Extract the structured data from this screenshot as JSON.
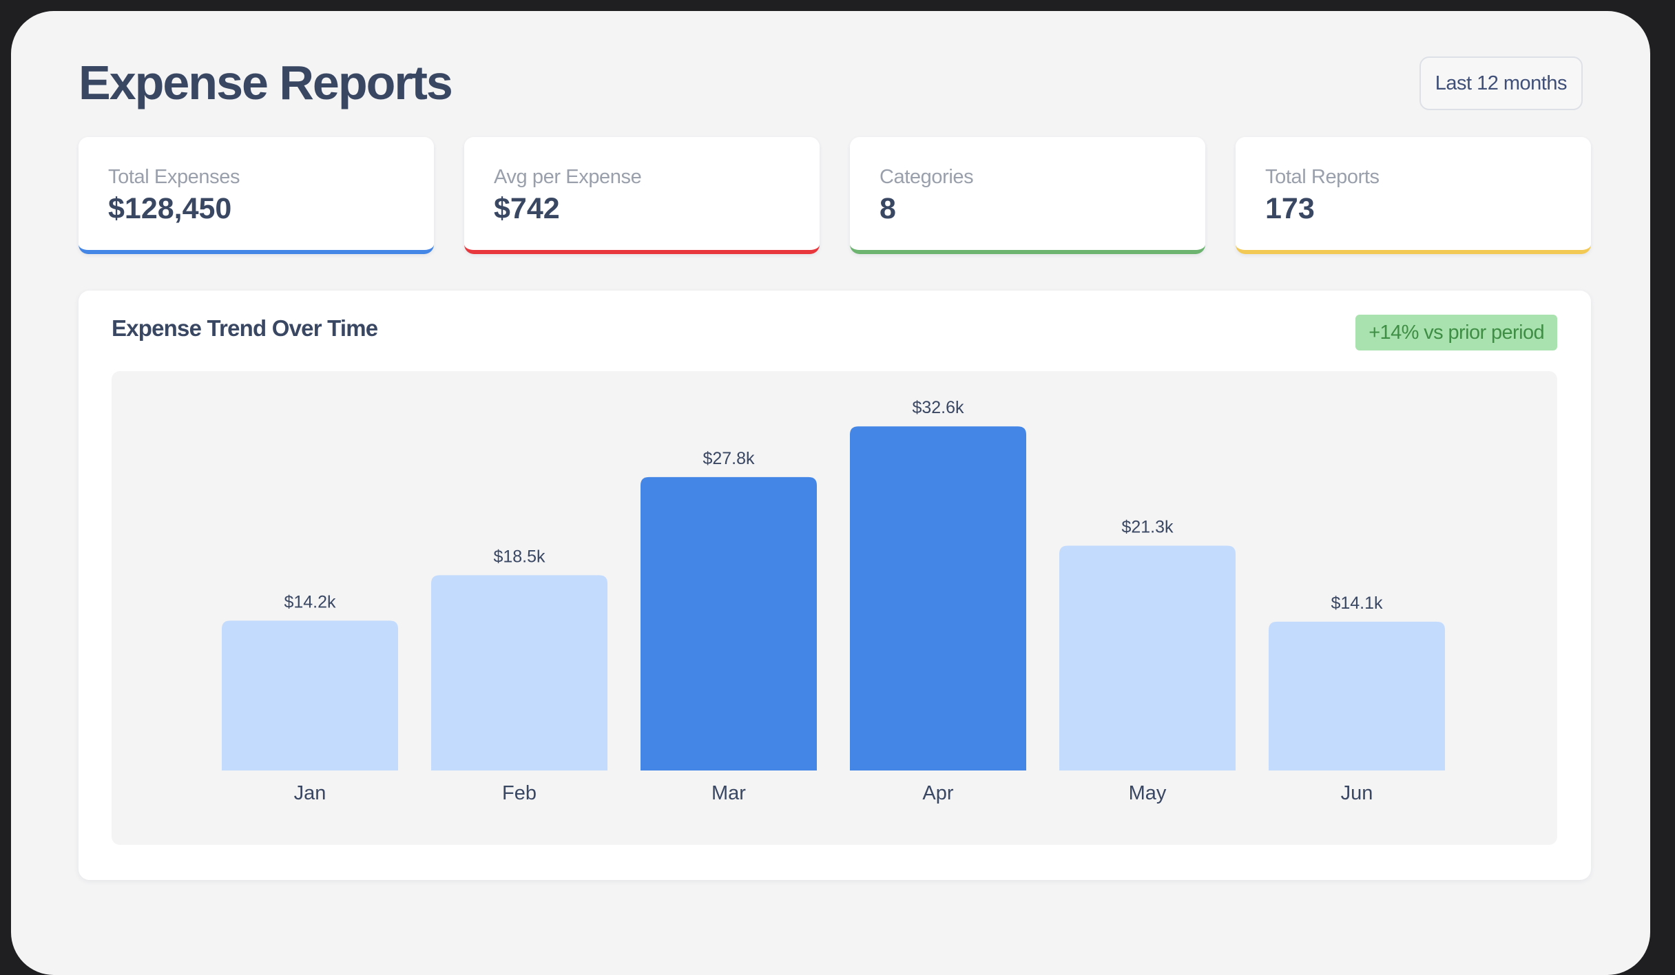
{
  "header": {
    "title": "Expense Reports",
    "range_label": "Last 12 months"
  },
  "stats": [
    {
      "label": "Total Expenses",
      "value": "$128,450",
      "accent": "#4386e6"
    },
    {
      "label": "Avg per Expense",
      "value": "$742",
      "accent": "#e8373d"
    },
    {
      "label": "Categories",
      "value": "8",
      "accent": "#6cb46f"
    },
    {
      "label": "Total Reports",
      "value": "173",
      "accent": "#f2c955"
    }
  ],
  "trend": {
    "title": "Expense Trend Over Time",
    "badge": "+14% vs prior period",
    "badge_color": "#a9e2ae"
  },
  "colors": {
    "highlight_bar": "#4386e6",
    "regular_bar": "#c3dbfd",
    "text": "#3a4763"
  },
  "chart_data": {
    "type": "bar",
    "categories": [
      "Jan",
      "Feb",
      "Mar",
      "Apr",
      "May",
      "Jun"
    ],
    "values": [
      14.2,
      18.5,
      27.8,
      32.6,
      21.3,
      14.1
    ],
    "value_labels": [
      "$14.2k",
      "$18.5k",
      "$27.8k",
      "$32.6k",
      "$21.3k",
      "$14.1k"
    ],
    "highlighted": [
      "Mar",
      "Apr"
    ],
    "unit": "$k",
    "title": "",
    "xlabel": "",
    "ylabel": "",
    "grid": false,
    "legend": "none"
  }
}
